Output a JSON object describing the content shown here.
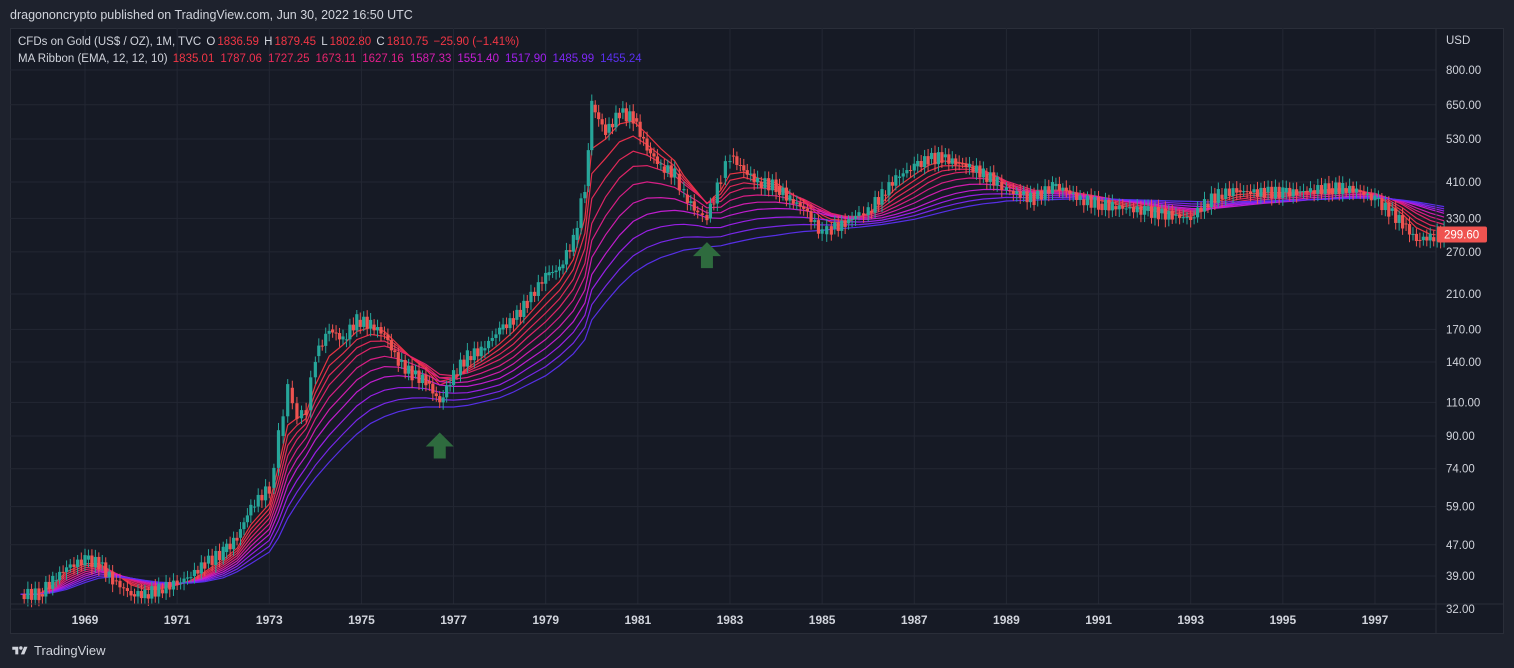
{
  "header": {
    "published_line": "dragononcrypto published on TradingView.com, Jun 30, 2022 16:50 UTC"
  },
  "legend": {
    "symbol": "CFDs on Gold (US$ / OZ), 1M, TVC",
    "o_key": "O",
    "o_val": "1836.59",
    "h_key": "H",
    "h_val": "1879.45",
    "l_key": "L",
    "l_val": "1802.80",
    "c_key": "C",
    "c_val": "1810.75",
    "change": "−25.90 (−1.41%)",
    "ribbon_name": "MA Ribbon (EMA, 12, 12, 10)",
    "ribbon_values": [
      {
        "value": "1835.01",
        "color": "#f23645"
      },
      {
        "value": "1787.06",
        "color": "#f0304e"
      },
      {
        "value": "1727.25",
        "color": "#ec2a5c"
      },
      {
        "value": "1673.11",
        "color": "#e8256b"
      },
      {
        "value": "1627.16",
        "color": "#e21f8a"
      },
      {
        "value": "1587.33",
        "color": "#d81eb4"
      },
      {
        "value": "1551.40",
        "color": "#c81ed8"
      },
      {
        "value": "1517.90",
        "color": "#a020f0"
      },
      {
        "value": "1485.99",
        "color": "#7c28f2"
      },
      {
        "value": "1455.24",
        "color": "#5a30f0"
      }
    ]
  },
  "footer": {
    "brand": "TradingView"
  },
  "colors": {
    "background": "#161a25",
    "up": "#26a69a",
    "down": "#ef5350",
    "last_price_bg": "#ef5350",
    "arrow": "#2e6b3e"
  },
  "icons": [
    "tradingview-logo-icon",
    "arrow-up-icon"
  ],
  "chart_data": {
    "type": "line",
    "title": "",
    "price_scale": "log",
    "y_axis_label": "USD",
    "y_ticks": [
      "800.00",
      "650.00",
      "530.00",
      "410.00",
      "330.00",
      "270.00",
      "210.00",
      "170.00",
      "140.00",
      "110.00",
      "90.00",
      "74.00",
      "59.00",
      "47.00",
      "39.00",
      "32.00"
    ],
    "x_ticks": [
      "1969",
      "1971",
      "1973",
      "1975",
      "1977",
      "1979",
      "1981",
      "1983",
      "1985",
      "1987",
      "1989",
      "1991",
      "1993",
      "1995",
      "1997"
    ],
    "last_price_label": "299.60",
    "grid": true,
    "series_price": {
      "name": "",
      "x": [
        1967.6,
        1968.0,
        1968.3,
        1968.6,
        1969.0,
        1969.3,
        1969.6,
        1970.0,
        1970.3,
        1970.6,
        1971.0,
        1971.3,
        1971.6,
        1972.0,
        1972.3,
        1972.6,
        1973.0,
        1973.2,
        1973.4,
        1973.6,
        1973.8,
        1974.0,
        1974.3,
        1974.6,
        1974.9,
        1975.2,
        1975.5,
        1975.8,
        1976.1,
        1976.4,
        1976.7,
        1977.0,
        1977.3,
        1977.6,
        1978.0,
        1978.3,
        1978.6,
        1979.0,
        1979.3,
        1979.6,
        1979.85,
        1980.0,
        1980.3,
        1980.6,
        1980.9,
        1981.2,
        1981.5,
        1981.8,
        1982.0,
        1982.3,
        1982.5,
        1982.8,
        1983.0,
        1983.3,
        1983.6,
        1984.0,
        1984.3,
        1984.6,
        1985.0,
        1985.2,
        1985.5,
        1985.8,
        1986.0,
        1986.3,
        1986.6,
        1987.0,
        1987.3,
        1987.6,
        1987.9,
        1988.2,
        1988.5,
        1988.8,
        1989.0,
        1989.3,
        1989.6,
        1990.0,
        1990.3,
        1990.6,
        1991.0,
        1991.3,
        1991.6,
        1992.0,
        1992.3,
        1992.6,
        1993.0,
        1993.3,
        1993.6,
        1994.0,
        1994.3,
        1994.6,
        1995.0,
        1995.3,
        1995.6,
        1996.0,
        1996.3,
        1996.6,
        1997.0,
        1997.3,
        1997.6,
        1997.9,
        1998.2,
        1998.5
      ],
      "values": [
        35,
        35,
        38,
        41,
        43,
        42,
        38,
        35,
        35,
        36,
        37.5,
        39,
        42,
        45,
        49,
        59,
        66,
        90,
        120,
        100,
        105,
        145,
        170,
        160,
        180,
        175,
        165,
        140,
        130,
        125,
        110,
        130,
        145,
        150,
        170,
        180,
        200,
        235,
        245,
        290,
        400,
        650,
        550,
        620,
        600,
        500,
        450,
        430,
        380,
        340,
        330,
        420,
        480,
        440,
        410,
        400,
        370,
        350,
        300,
        310,
        320,
        340,
        345,
        380,
        420,
        450,
        470,
        475,
        460,
        450,
        430,
        410,
        390,
        380,
        370,
        400,
        390,
        370,
        360,
        355,
        350,
        345,
        340,
        335,
        330,
        360,
        380,
        390,
        385,
        385,
        385,
        385,
        390,
        395,
        395,
        390,
        370,
        345,
        320,
        290,
        295,
        300
      ]
    },
    "series_ribbon": [
      {
        "name": "",
        "color": "#f23645",
        "values": [
          35,
          35,
          37,
          40,
          42,
          42,
          40,
          37,
          36,
          36,
          37,
          38,
          40,
          43,
          46,
          53,
          60,
          75,
          96,
          100,
          103,
          122,
          145,
          155,
          168,
          172,
          168,
          155,
          143,
          134,
          122,
          126,
          135,
          143,
          156,
          168,
          184,
          208,
          226,
          258,
          330,
          500,
          530,
          580,
          590,
          545,
          500,
          465,
          425,
          385,
          360,
          390,
          430,
          435,
          420,
          408,
          385,
          365,
          330,
          322,
          322,
          332,
          340,
          362,
          395,
          428,
          452,
          465,
          462,
          455,
          440,
          422,
          402,
          388,
          376,
          390,
          390,
          378,
          368,
          361,
          354,
          348,
          343,
          338,
          333,
          348,
          366,
          380,
          382,
          384,
          385,
          386,
          388,
          392,
          394,
          392,
          380,
          360,
          338,
          312,
          300,
          298
        ]
      },
      {
        "name": "",
        "color": "#ec2a5c",
        "values": [
          35,
          35,
          36,
          38.5,
          40.5,
          41,
          40,
          38,
          37,
          36.5,
          37,
          37.8,
          39,
          41.5,
          44,
          49,
          55,
          65,
          80,
          88,
          94,
          106,
          122,
          133,
          145,
          152,
          154,
          150,
          144,
          138,
          130,
          129,
          131,
          135,
          142,
          150,
          162,
          178,
          194,
          216,
          252,
          320,
          375,
          420,
          450,
          452,
          440,
          425,
          405,
          380,
          362,
          365,
          384,
          395,
          396,
          392,
          382,
          370,
          350,
          340,
          334,
          334,
          336,
          346,
          362,
          386,
          408,
          425,
          433,
          436,
          432,
          424,
          412,
          401,
          390,
          390,
          389,
          383,
          376,
          370,
          364,
          358,
          352,
          347,
          342,
          345,
          354,
          364,
          369,
          373,
          376,
          378,
          381,
          385,
          388,
          388,
          383,
          372,
          358,
          340,
          326,
          318
        ]
      },
      {
        "name": "",
        "color": "#d81eb4",
        "values": [
          35,
          35,
          35.6,
          37,
          39,
          40,
          39.5,
          38.5,
          37.8,
          37.2,
          37.3,
          37.6,
          38.4,
          40,
          42,
          45.5,
          50,
          57,
          67,
          74,
          80,
          88,
          98,
          107,
          117,
          124,
          128,
          129,
          128,
          126,
          122,
          121,
          121,
          123,
          127,
          133,
          141,
          152,
          163,
          178,
          199,
          236,
          267,
          298,
          324,
          338,
          344,
          346,
          344,
          338,
          331,
          330,
          336,
          343,
          348,
          350,
          349,
          346,
          339,
          334,
          330,
          328,
          328,
          331,
          338,
          350,
          362,
          374,
          383,
          389,
          392,
          392,
          390,
          387,
          383,
          382,
          381,
          378,
          374,
          370,
          366,
          362,
          358,
          354,
          350,
          349,
          351,
          355,
          358,
          361,
          364,
          366,
          369,
          372,
          375,
          377,
          376,
          372,
          366,
          357,
          348,
          340
        ]
      },
      {
        "name": "",
        "color": "#5a30f0",
        "values": [
          35,
          35,
          35.3,
          36,
          37.5,
          38.5,
          38.8,
          38.5,
          38,
          37.6,
          37.4,
          37.4,
          37.7,
          38.6,
          40,
          42,
          45,
          49,
          55,
          60,
          65,
          70,
          77,
          84,
          91,
          97,
          101,
          104,
          106,
          107,
          107,
          107,
          108,
          110,
          113,
          117,
          122,
          129,
          137,
          147,
          160,
          180,
          200,
          220,
          238,
          251,
          261,
          268,
          273,
          276,
          278,
          280,
          284,
          289,
          294,
          298,
          302,
          305,
          307,
          309,
          311,
          313,
          315,
          318,
          322,
          328,
          335,
          342,
          349,
          355,
          360,
          363,
          366,
          367,
          368,
          369,
          370,
          370,
          370,
          370,
          369,
          368,
          367,
          366,
          365,
          364,
          364,
          364,
          365,
          366,
          367,
          368,
          369,
          370,
          371,
          372,
          372,
          371,
          368,
          364,
          359,
          354
        ]
      }
    ],
    "annotations": [
      {
        "type": "arrow-up",
        "x": 1976.7,
        "y": 85
      },
      {
        "type": "arrow-up",
        "x": 1982.5,
        "y": 265
      }
    ]
  }
}
